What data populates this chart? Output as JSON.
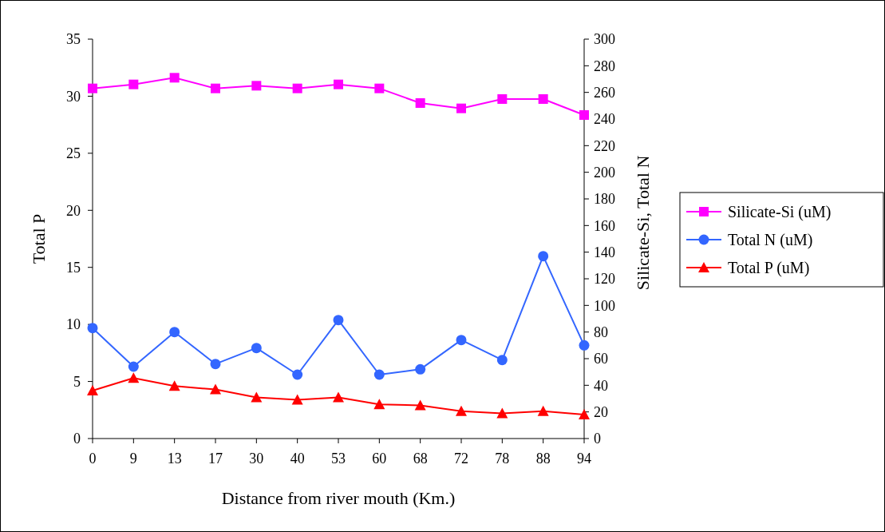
{
  "chart_data": {
    "type": "line",
    "xlabel": "Distance from river mouth (Km.)",
    "ylabel": "Total P",
    "y2label": "Silicate-Si, Total N",
    "categories": [
      "0",
      "9",
      "13",
      "17",
      "30",
      "40",
      "53",
      "60",
      "68",
      "72",
      "78",
      "88",
      "94"
    ],
    "ylim": [
      0,
      35
    ],
    "yticks": [
      0,
      5,
      10,
      15,
      20,
      25,
      30,
      35
    ],
    "y2lim": [
      0,
      300
    ],
    "y2ticks": [
      0,
      20,
      40,
      60,
      80,
      100,
      120,
      140,
      160,
      180,
      200,
      220,
      240,
      260,
      280,
      300
    ],
    "grid": false,
    "legend": "right",
    "line_style": "solid",
    "series": [
      {
        "name": "Silicate-Si (uM)",
        "color": "#ff00ff",
        "axis": "y2",
        "marker": "square",
        "values": [
          263,
          266,
          271,
          263,
          265,
          263,
          266,
          263,
          252,
          248,
          255,
          255,
          243
        ]
      },
      {
        "name": "Total N (uM)",
        "color": "#3366ff",
        "axis": "y2",
        "marker": "circle",
        "values": [
          83,
          54,
          80,
          56,
          68,
          48,
          89,
          48,
          52,
          74,
          59,
          137,
          70
        ]
      },
      {
        "name": "Total P (uM)",
        "color": "#ff0000",
        "axis": "y",
        "marker": "triangle",
        "values": [
          4.2,
          5.3,
          4.6,
          4.3,
          3.6,
          3.4,
          3.6,
          3.0,
          2.9,
          2.4,
          2.2,
          2.4,
          2.1
        ]
      }
    ]
  }
}
